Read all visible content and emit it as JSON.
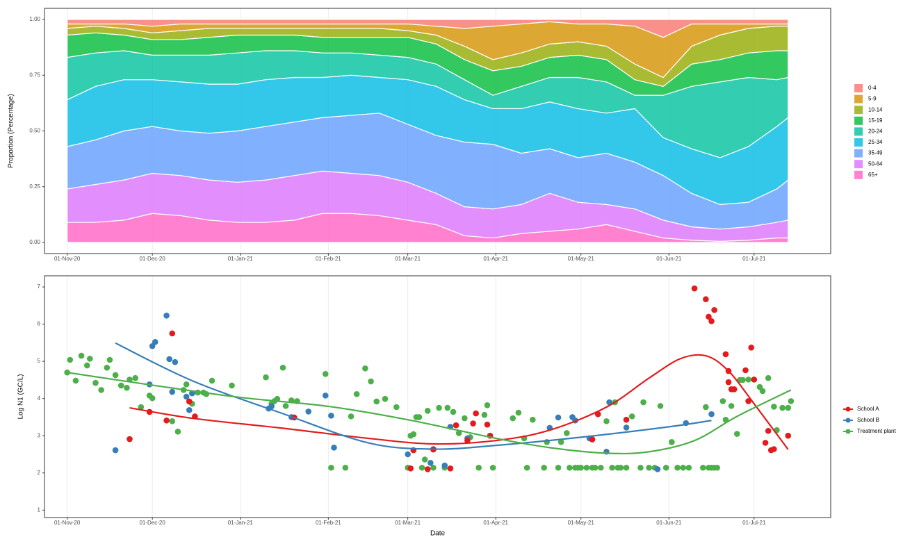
{
  "chart_data": [
    {
      "type": "area",
      "stacked": true,
      "y_label": "Proportion (Percentage)",
      "x": [
        "2020-11-01",
        "2020-11-11",
        "2020-11-21",
        "2020-12-01",
        "2020-12-11",
        "2020-12-21",
        "2020-12-31",
        "2021-01-10",
        "2021-01-20",
        "2021-01-30",
        "2021-02-09",
        "2021-02-19",
        "2021-03-01",
        "2021-03-11",
        "2021-03-21",
        "2021-03-31",
        "2021-04-10",
        "2021-04-20",
        "2021-04-30",
        "2021-05-10",
        "2021-05-20",
        "2021-05-30",
        "2021-06-09",
        "2021-06-19",
        "2021-06-29",
        "2021-07-09",
        "2021-07-13"
      ],
      "series": [
        {
          "name": "0-4",
          "color": "#F8766D",
          "values": [
            0.02,
            0.02,
            0.02,
            0.03,
            0.02,
            0.02,
            0.02,
            0.02,
            0.02,
            0.02,
            0.02,
            0.02,
            0.02,
            0.03,
            0.04,
            0.03,
            0.02,
            0.01,
            0.02,
            0.02,
            0.03,
            0.08,
            0.02,
            0.02,
            0.02,
            0.02,
            0.02
          ]
        },
        {
          "name": "5-9",
          "color": "#D39200",
          "values": [
            0.02,
            0.01,
            0.02,
            0.03,
            0.03,
            0.02,
            0.02,
            0.02,
            0.02,
            0.02,
            0.02,
            0.02,
            0.03,
            0.04,
            0.08,
            0.15,
            0.13,
            0.1,
            0.08,
            0.1,
            0.17,
            0.18,
            0.1,
            0.05,
            0.02,
            0.01,
            0.01
          ]
        },
        {
          "name": "10-14",
          "color": "#93AA00",
          "values": [
            0.03,
            0.03,
            0.03,
            0.03,
            0.04,
            0.04,
            0.03,
            0.03,
            0.03,
            0.04,
            0.04,
            0.04,
            0.03,
            0.04,
            0.06,
            0.05,
            0.06,
            0.06,
            0.06,
            0.06,
            0.07,
            0.04,
            0.08,
            0.11,
            0.11,
            0.11,
            0.11
          ]
        },
        {
          "name": "15-19",
          "color": "#00BA38",
          "values": [
            0.1,
            0.09,
            0.07,
            0.07,
            0.07,
            0.08,
            0.08,
            0.07,
            0.07,
            0.07,
            0.07,
            0.08,
            0.09,
            0.09,
            0.09,
            0.11,
            0.09,
            0.09,
            0.1,
            0.1,
            0.07,
            0.04,
            0.1,
            0.1,
            0.11,
            0.13,
            0.12
          ]
        },
        {
          "name": "20-24",
          "color": "#00C19F",
          "values": [
            0.19,
            0.15,
            0.13,
            0.11,
            0.12,
            0.13,
            0.14,
            0.13,
            0.12,
            0.11,
            0.1,
            0.1,
            0.1,
            0.1,
            0.09,
            0.06,
            0.1,
            0.11,
            0.14,
            0.14,
            0.06,
            0.19,
            0.28,
            0.34,
            0.31,
            0.21,
            0.18
          ]
        },
        {
          "name": "25-34",
          "color": "#00B9E3",
          "values": [
            0.21,
            0.24,
            0.23,
            0.21,
            0.22,
            0.22,
            0.21,
            0.21,
            0.2,
            0.18,
            0.18,
            0.16,
            0.2,
            0.22,
            0.19,
            0.16,
            0.2,
            0.21,
            0.22,
            0.18,
            0.24,
            0.17,
            0.2,
            0.21,
            0.25,
            0.28,
            0.28
          ]
        },
        {
          "name": "35-49",
          "color": "#619CFF",
          "values": [
            0.19,
            0.2,
            0.22,
            0.21,
            0.2,
            0.21,
            0.23,
            0.24,
            0.24,
            0.24,
            0.26,
            0.28,
            0.26,
            0.26,
            0.29,
            0.29,
            0.23,
            0.2,
            0.2,
            0.23,
            0.21,
            0.2,
            0.15,
            0.11,
            0.11,
            0.15,
            0.18
          ]
        },
        {
          "name": "50-64",
          "color": "#DB72FB",
          "values": [
            0.15,
            0.17,
            0.18,
            0.18,
            0.18,
            0.18,
            0.18,
            0.19,
            0.2,
            0.19,
            0.18,
            0.18,
            0.17,
            0.14,
            0.13,
            0.13,
            0.13,
            0.17,
            0.12,
            0.09,
            0.1,
            0.08,
            0.06,
            0.055,
            0.06,
            0.07,
            0.08
          ]
        },
        {
          "name": "65+",
          "color": "#FF61C3",
          "values": [
            0.09,
            0.09,
            0.1,
            0.13,
            0.12,
            0.1,
            0.09,
            0.09,
            0.1,
            0.13,
            0.13,
            0.12,
            0.1,
            0.08,
            0.03,
            0.02,
            0.04,
            0.05,
            0.06,
            0.08,
            0.05,
            0.02,
            0.01,
            0.005,
            0.01,
            0.02,
            0.02
          ]
        }
      ],
      "xlim": [
        "2020-10-24",
        "2021-07-28"
      ],
      "xticks": [
        {
          "value": "2020-11-01",
          "label": "01-Nov-20"
        },
        {
          "value": "2020-12-01",
          "label": "01-Dec-20"
        },
        {
          "value": "2021-01-01",
          "label": "01-Jan-21"
        },
        {
          "value": "2021-02-01",
          "label": "01-Feb-21"
        },
        {
          "value": "2021-03-01",
          "label": "01-Mar-21"
        },
        {
          "value": "2021-04-01",
          "label": "01-Apr-21"
        },
        {
          "value": "2021-05-01",
          "label": "01-May-21"
        },
        {
          "value": "2021-06-01",
          "label": "01-Jun-21"
        },
        {
          "value": "2021-07-01",
          "label": "01-Jul-21"
        }
      ],
      "ylim": [
        -0.05,
        1.05
      ],
      "yticks": [
        {
          "value": 0,
          "label": "0.00"
        },
        {
          "value": 0.25,
          "label": "0.25"
        },
        {
          "value": 0.5,
          "label": "0.50"
        },
        {
          "value": 0.75,
          "label": "0.75"
        },
        {
          "value": 1,
          "label": "1.00"
        }
      ],
      "grid": "x",
      "legend": "right"
    },
    {
      "type": "scatter",
      "x_label": "Date",
      "y_label": "Log N1 (GC/L)",
      "series": [
        {
          "name": "School A",
          "color": "#E41A1C",
          "x": [
            "2020-11-23",
            "2020-11-30",
            "2020-12-06",
            "2020-12-08",
            "2020-12-14",
            "2020-12-16",
            "2021-01-20",
            "2021-03-02",
            "2021-03-03",
            "2021-03-08",
            "2021-03-10",
            "2021-03-16",
            "2021-03-18",
            "2021-03-22",
            "2021-03-24",
            "2021-03-25",
            "2021-03-29",
            "2021-03-30",
            "2021-05-05",
            "2021-05-07",
            "2021-05-17",
            "2021-06-10",
            "2021-06-14",
            "2021-06-15",
            "2021-06-16",
            "2021-06-17",
            "2021-06-21",
            "2021-06-22",
            "2021-06-22",
            "2021-06-23",
            "2021-06-24",
            "2021-06-28",
            "2021-06-29",
            "2021-06-30",
            "2021-07-01",
            "2021-07-05",
            "2021-07-06",
            "2021-07-07",
            "2021-07-08",
            "2021-07-13"
          ],
          "values": [
            2.91,
            3.64,
            3.41,
            5.75,
            3.92,
            3.52,
            3.49,
            2.12,
            2.61,
            2.1,
            2.63,
            2.12,
            3.28,
            2.87,
            3.33,
            3.6,
            3.3,
            3.0,
            2.9,
            3.58,
            3.43,
            6.96,
            6.67,
            6.2,
            6.08,
            6.38,
            5.19,
            4.74,
            4.44,
            4.25,
            4.25,
            4.76,
            3.93,
            5.37,
            4.51,
            2.81,
            3.13,
            2.61,
            2.64,
            3.0
          ],
          "smooth": {
            "x": [
              "2020-11-23",
              "2020-12-15",
              "2021-01-15",
              "2021-02-15",
              "2021-03-10",
              "2021-04-01",
              "2021-04-20",
              "2021-05-10",
              "2021-05-25",
              "2021-06-05",
              "2021-06-14",
              "2021-06-22",
              "2021-07-01",
              "2021-07-13"
            ],
            "values": [
              3.75,
              3.47,
              3.21,
              2.93,
              2.78,
              2.87,
              3.15,
              3.77,
              4.55,
              5.07,
              5.15,
              4.74,
              3.86,
              2.63
            ]
          }
        },
        {
          "name": "School B",
          "color": "#377EB8",
          "x": [
            "2020-11-18",
            "2020-11-30",
            "2020-12-01",
            "2020-12-02",
            "2020-12-06",
            "2020-12-07",
            "2020-12-08",
            "2020-12-09",
            "2020-12-13",
            "2020-12-14",
            "2020-12-15",
            "2021-01-11",
            "2021-01-12",
            "2021-01-19",
            "2021-01-25",
            "2021-01-31",
            "2021-02-02",
            "2021-02-03",
            "2021-03-01",
            "2021-03-09",
            "2021-03-10",
            "2021-03-14",
            "2021-03-16",
            "2021-03-22",
            "2021-04-20",
            "2021-04-23",
            "2021-04-28",
            "2021-04-29",
            "2021-05-04",
            "2021-05-10",
            "2021-05-11",
            "2021-05-17",
            "2021-05-28",
            "2021-06-07",
            "2021-06-16"
          ],
          "values": [
            2.61,
            4.38,
            5.41,
            5.52,
            6.23,
            5.06,
            4.18,
            4.98,
            4.05,
            3.69,
            4.14,
            3.73,
            3.79,
            3.5,
            3.65,
            4.08,
            3.54,
            2.68,
            2.5,
            2.27,
            2.64,
            2.2,
            3.24,
            2.93,
            3.21,
            3.49,
            3.5,
            3.41,
            2.93,
            2.57,
            3.9,
            3.22,
            2.1,
            3.34,
            3.58
          ],
          "smooth": {
            "x": [
              "2020-11-18",
              "2020-12-15",
              "2021-01-15",
              "2021-02-15",
              "2021-03-10",
              "2021-04-01",
              "2021-05-01",
              "2021-06-01",
              "2021-06-16"
            ],
            "values": [
              5.49,
              4.48,
              3.62,
              2.81,
              2.64,
              2.74,
              2.96,
              3.24,
              3.41
            ]
          }
        },
        {
          "name": "Treatment plant",
          "color": "#4DAF4A",
          "x": [
            "2020-11-01",
            "2020-11-02",
            "2020-11-04",
            "2020-11-06",
            "2020-11-08",
            "2020-11-09",
            "2020-11-11",
            "2020-11-13",
            "2020-11-15",
            "2020-11-16",
            "2020-11-18",
            "2020-11-20",
            "2020-11-22",
            "2020-11-23",
            "2020-11-25",
            "2020-11-27",
            "2020-11-30",
            "2020-12-01",
            "2020-12-08",
            "2020-12-10",
            "2020-12-12",
            "2020-12-13",
            "2020-12-15",
            "2020-12-17",
            "2020-12-19",
            "2020-12-20",
            "2020-12-22",
            "2020-12-29",
            "2021-01-10",
            "2021-01-12",
            "2021-01-13",
            "2021-01-14",
            "2021-01-16",
            "2021-01-17",
            "2021-01-19",
            "2021-01-21",
            "2021-01-31",
            "2021-02-02",
            "2021-02-07",
            "2021-02-09",
            "2021-02-11",
            "2021-02-14",
            "2021-02-16",
            "2021-02-18",
            "2021-02-21",
            "2021-02-25",
            "2021-03-01",
            "2021-03-02",
            "2021-03-03",
            "2021-03-04",
            "2021-03-05",
            "2021-03-06",
            "2021-03-07",
            "2021-03-08",
            "2021-03-10",
            "2021-03-12",
            "2021-03-14",
            "2021-03-15",
            "2021-03-17",
            "2021-03-19",
            "2021-03-21",
            "2021-03-23",
            "2021-03-26",
            "2021-03-28",
            "2021-03-29",
            "2021-03-31",
            "2021-04-07",
            "2021-04-09",
            "2021-04-11",
            "2021-04-12",
            "2021-04-14",
            "2021-04-18",
            "2021-04-19",
            "2021-04-23",
            "2021-04-24",
            "2021-04-26",
            "2021-04-27",
            "2021-04-29",
            "2021-04-30",
            "2021-05-01",
            "2021-05-03",
            "2021-05-05",
            "2021-05-06",
            "2021-05-08",
            "2021-05-10",
            "2021-05-12",
            "2021-05-13",
            "2021-05-14",
            "2021-05-15",
            "2021-05-17",
            "2021-05-19",
            "2021-05-22",
            "2021-05-23",
            "2021-05-25",
            "2021-05-27",
            "2021-05-29",
            "2021-05-31",
            "2021-06-02",
            "2021-06-04",
            "2021-06-06",
            "2021-06-08",
            "2021-06-13",
            "2021-06-14",
            "2021-06-15",
            "2021-06-16",
            "2021-06-17",
            "2021-06-18",
            "2021-06-20",
            "2021-06-21",
            "2021-06-23",
            "2021-06-25",
            "2021-06-26",
            "2021-06-27",
            "2021-06-29",
            "2021-07-01",
            "2021-07-03",
            "2021-07-04",
            "2021-07-06",
            "2021-07-08",
            "2021-07-09",
            "2021-07-11",
            "2021-07-13",
            "2021-07-14"
          ],
          "values": [
            4.7,
            5.04,
            4.48,
            5.15,
            4.89,
            5.07,
            4.42,
            4.23,
            4.83,
            5.04,
            4.63,
            4.35,
            4.29,
            4.51,
            4.55,
            3.77,
            4.08,
            4.01,
            3.39,
            3.11,
            4.23,
            4.38,
            3.86,
            4.16,
            4.16,
            4.12,
            4.48,
            4.35,
            4.57,
            3.86,
            3.93,
            3.99,
            4.83,
            3.8,
            3.95,
            3.93,
            4.66,
            2.14,
            2.14,
            3.52,
            4.12,
            4.81,
            4.46,
            3.92,
            3.99,
            3.77,
            2.14,
            3.0,
            3.04,
            3.5,
            3.5,
            2.14,
            2.36,
            3.67,
            2.14,
            3.75,
            2.14,
            3.75,
            3.64,
            3.07,
            3.47,
            2.96,
            2.14,
            3.56,
            3.82,
            2.14,
            3.47,
            3.62,
            2.93,
            2.14,
            3.43,
            2.14,
            2.83,
            2.14,
            2.83,
            3.07,
            2.14,
            2.14,
            2.14,
            2.14,
            2.14,
            2.14,
            2.14,
            2.14,
            3.39,
            2.14,
            3.9,
            2.14,
            2.14,
            2.14,
            3.52,
            2.14,
            3.9,
            2.14,
            2.14,
            3.8,
            2.14,
            2.83,
            2.14,
            2.14,
            2.14,
            2.14,
            3.77,
            2.14,
            2.14,
            2.14,
            2.14,
            3.93,
            3.43,
            3.8,
            3.05,
            4.5,
            4.5,
            4.51,
            4.51,
            4.31,
            4.2,
            4.55,
            3.78,
            3.15,
            3.75,
            3.75,
            3.93
          ],
          "smooth": {
            "x": [
              "2020-11-01",
              "2020-12-01",
              "2021-01-01",
              "2021-02-01",
              "2021-03-01",
              "2021-04-01",
              "2021-04-20",
              "2021-05-10",
              "2021-05-25",
              "2021-06-10",
              "2021-06-25",
              "2021-07-14"
            ],
            "values": [
              4.7,
              4.36,
              4.03,
              3.79,
              3.43,
              2.93,
              2.68,
              2.53,
              2.57,
              2.87,
              3.52,
              4.23
            ]
          }
        }
      ],
      "xlim": [
        "2020-10-24",
        "2021-07-28"
      ],
      "xticks": [
        {
          "value": "2020-11-01",
          "label": "01-Nov-20"
        },
        {
          "value": "2020-12-01",
          "label": "01-Dec-20"
        },
        {
          "value": "2021-01-01",
          "label": "01-Jan-21"
        },
        {
          "value": "2021-02-01",
          "label": "01-Feb-21"
        },
        {
          "value": "2021-03-01",
          "label": "01-Mar-21"
        },
        {
          "value": "2021-04-01",
          "label": "01-Apr-21"
        },
        {
          "value": "2021-05-01",
          "label": "01-May-21"
        },
        {
          "value": "2021-06-01",
          "label": "01-Jun-21"
        },
        {
          "value": "2021-07-01",
          "label": "01-Jul-21"
        }
      ],
      "ylim": [
        0.8,
        7.3
      ],
      "yticks": [
        1,
        2,
        3,
        4,
        5,
        6,
        7
      ],
      "grid": "x",
      "legend": "right"
    }
  ]
}
